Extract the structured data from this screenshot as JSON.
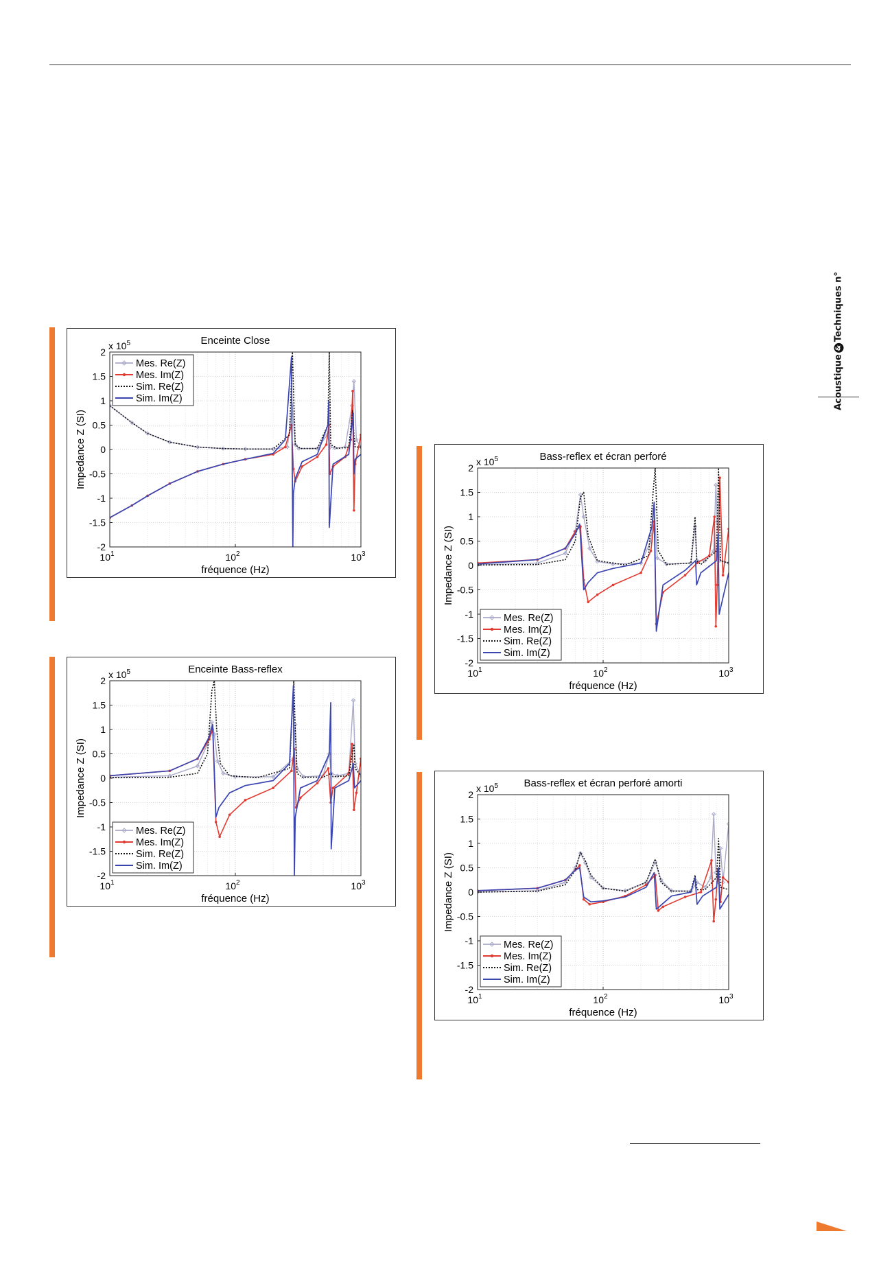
{
  "page": {
    "side_brand": {
      "left": "Acoustique",
      "mid": "&",
      "right": "Techniques n°"
    }
  },
  "style": {
    "accent": "#ee7a2f",
    "mes_re": "#a9a9c9",
    "mes_im": "#e23a30",
    "sim_re": "#111111",
    "sim_im": "#3a45b0"
  },
  "chart_data": [
    {
      "type": "line",
      "title": "Enceinte Close",
      "xlabel": "fréquence (Hz)",
      "ylabel": "Impedance Z (SI)",
      "y_multiplier": "x 10",
      "y_multiplier_exp": "5",
      "xscale": "log",
      "xlim": [
        10,
        1000
      ],
      "ylim": [
        -2,
        2
      ],
      "x_ticks": [
        "10",
        "10",
        "10"
      ],
      "x_tick_exps": [
        "1",
        "2",
        "3"
      ],
      "y_ticks": [
        "2",
        "1.5",
        "1",
        "0.5",
        "0",
        "-0.5",
        "-1",
        "-1.5",
        "-2"
      ],
      "grid": true,
      "legend_position": "upper-left",
      "series": [
        {
          "name": "Mes. Re(Z)",
          "x": [
            10,
            15,
            20,
            30,
            50,
            80,
            120,
            200,
            260,
            285,
            300,
            320,
            450,
            540,
            570,
            620,
            750,
            850,
            880,
            920,
            1000
          ],
          "y": [
            0.9,
            0.55,
            0.33,
            0.15,
            0.05,
            0.02,
            0.01,
            0.01,
            0.05,
            0.9,
            0.1,
            0.02,
            0.02,
            0.3,
            0.05,
            0.03,
            0.05,
            0.9,
            1.4,
            0.2,
            0.05
          ]
        },
        {
          "name": "Mes. Im(Z)",
          "x": [
            10,
            15,
            20,
            30,
            50,
            80,
            120,
            200,
            250,
            280,
            290,
            300,
            340,
            450,
            530,
            555,
            565,
            600,
            750,
            830,
            860,
            880,
            900,
            1000
          ],
          "y": [
            -1.4,
            -1.15,
            -0.95,
            -0.7,
            -0.45,
            -0.3,
            -0.2,
            -0.1,
            0.05,
            0.5,
            -0.4,
            -0.65,
            -0.35,
            -0.15,
            0.1,
            0.5,
            -0.5,
            -0.35,
            -0.15,
            0.2,
            1.2,
            -1.25,
            -0.3,
            0.3
          ]
        },
        {
          "name": "Sim. Re(Z)",
          "x": [
            10,
            15,
            20,
            30,
            50,
            80,
            120,
            200,
            270,
            285,
            292,
            300,
            330,
            450,
            545,
            560,
            575,
            650,
            800,
            860,
            880,
            900,
            1000
          ],
          "y": [
            0.9,
            0.55,
            0.33,
            0.15,
            0.05,
            0.02,
            0.01,
            0.01,
            0.3,
            2.0,
            1.0,
            0.1,
            0.02,
            0.02,
            0.5,
            2.0,
            0.1,
            0.02,
            0.05,
            0.8,
            0.3,
            0.05,
            0.05
          ]
        },
        {
          "name": "Sim. Im(Z)",
          "x": [
            10,
            15,
            20,
            30,
            50,
            80,
            120,
            200,
            250,
            280,
            287,
            290,
            300,
            340,
            450,
            545,
            555,
            560,
            600,
            800,
            870,
            880,
            900,
            1000
          ],
          "y": [
            -1.4,
            -1.15,
            -0.95,
            -0.7,
            -0.45,
            -0.3,
            -0.2,
            -0.08,
            0.2,
            1.9,
            -2.0,
            -0.9,
            -0.6,
            -0.25,
            -0.1,
            0.5,
            1.0,
            -1.6,
            -0.3,
            -0.1,
            0.75,
            -0.5,
            -0.2,
            -0.1
          ]
        }
      ]
    },
    {
      "type": "line",
      "title": "Enceinte Bass-reflex",
      "xlabel": "fréquence (Hz)",
      "ylabel": "Impedance Z (SI)",
      "y_multiplier": "x 10",
      "y_multiplier_exp": "5",
      "xscale": "log",
      "xlim": [
        10,
        1000
      ],
      "ylim": [
        -2,
        2
      ],
      "x_ticks": [
        "10",
        "10",
        "10"
      ],
      "x_tick_exps": [
        "1",
        "2",
        "3"
      ],
      "y_ticks": [
        "2",
        "1.5",
        "1",
        "0.5",
        "0",
        "-0.5",
        "-1",
        "-1.5",
        "-2"
      ],
      "grid": true,
      "legend_position": "lower-left",
      "series": [
        {
          "name": "Mes. Re(Z)",
          "x": [
            10,
            30,
            50,
            60,
            65,
            68,
            72,
            80,
            100,
            200,
            290,
            300,
            310,
            350,
            500,
            560,
            580,
            650,
            800,
            870,
            900,
            1000
          ],
          "y": [
            0.02,
            0.05,
            0.25,
            0.7,
            1.15,
            0.9,
            0.35,
            0.1,
            0.03,
            0.03,
            0.4,
            1.1,
            0.2,
            0.03,
            0.05,
            0.5,
            0.1,
            0.05,
            0.1,
            1.6,
            0.3,
            0.05
          ]
        },
        {
          "name": "Mes. Im(Z)",
          "x": [
            10,
            30,
            50,
            62,
            66,
            70,
            75,
            90,
            120,
            200,
            280,
            295,
            305,
            330,
            450,
            550,
            575,
            600,
            800,
            850,
            880,
            920,
            1000
          ],
          "y": [
            0.05,
            0.15,
            0.4,
            0.8,
            1.0,
            -0.9,
            -1.2,
            -0.75,
            -0.45,
            -0.2,
            0.15,
            0.6,
            -0.6,
            -0.4,
            -0.1,
            0.2,
            -0.5,
            -0.2,
            0.1,
            0.7,
            -0.65,
            -0.3,
            0.4
          ]
        },
        {
          "name": "Sim. Re(Z)",
          "x": [
            10,
            30,
            50,
            60,
            65,
            68,
            71,
            76,
            90,
            150,
            270,
            292,
            300,
            310,
            340,
            500,
            580,
            600,
            800,
            880,
            900,
            1000
          ],
          "y": [
            0.01,
            0.02,
            0.1,
            0.5,
            1.8,
            2.0,
            1.0,
            0.3,
            0.05,
            0.01,
            0.2,
            2.0,
            1.0,
            0.1,
            0.02,
            0.02,
            0.1,
            0.03,
            0.05,
            0.7,
            0.2,
            0.05
          ]
        },
        {
          "name": "Sim. Im(Z)",
          "x": [
            10,
            30,
            50,
            62,
            66,
            70,
            74,
            90,
            120,
            200,
            270,
            290,
            295,
            300,
            330,
            450,
            560,
            575,
            580,
            620,
            800,
            870,
            890,
            1000
          ],
          "y": [
            0.05,
            0.15,
            0.4,
            0.85,
            1.1,
            -0.8,
            -0.6,
            -0.3,
            -0.15,
            -0.05,
            0.3,
            1.9,
            -2.0,
            -0.8,
            -0.2,
            -0.05,
            0.5,
            1.55,
            -1.45,
            -0.2,
            -0.05,
            0.3,
            -0.2,
            -0.05
          ]
        }
      ]
    },
    {
      "type": "line",
      "title": "Bass-reflex et écran perforé",
      "xlabel": "fréquence (Hz)",
      "ylabel": "Impedance Z (SI)",
      "y_multiplier": "x 10",
      "y_multiplier_exp": "5",
      "xscale": "log",
      "xlim": [
        10,
        1000
      ],
      "ylim": [
        -2,
        2
      ],
      "x_ticks": [
        "10",
        "10",
        "10"
      ],
      "x_tick_exps": [
        "1",
        "2",
        "3"
      ],
      "y_ticks": [
        "2",
        "1.5",
        "1",
        "0.5",
        "0",
        "-0.5",
        "-1",
        "-1.5",
        "-2"
      ],
      "grid": true,
      "legend_position": "lower-left",
      "series": [
        {
          "name": "Mes. Re(Z)",
          "x": [
            10,
            30,
            50,
            60,
            66,
            70,
            78,
            90,
            120,
            200,
            240,
            255,
            270,
            320,
            500,
            540,
            560,
            650,
            760,
            790,
            810,
            850,
            1000
          ],
          "y": [
            0.01,
            0.05,
            0.25,
            0.7,
            1.45,
            1.0,
            0.35,
            0.08,
            0.03,
            0.05,
            0.5,
            1.15,
            0.15,
            0.03,
            0.05,
            0.8,
            0.1,
            0.1,
            0.3,
            1.65,
            0.9,
            0.1,
            0.05
          ]
        },
        {
          "name": "Mes. Im(Z)",
          "x": [
            10,
            30,
            50,
            60,
            66,
            70,
            76,
            90,
            120,
            200,
            240,
            255,
            265,
            300,
            450,
            560,
            700,
            770,
            790,
            810,
            850,
            900,
            1000
          ],
          "y": [
            0.05,
            0.12,
            0.35,
            0.7,
            0.8,
            -0.3,
            -0.75,
            -0.6,
            -0.4,
            -0.15,
            0.3,
            0.9,
            -1.2,
            -0.55,
            -0.2,
            0.05,
            0.2,
            1.0,
            -1.25,
            -0.4,
            1.8,
            -0.2,
            0.75
          ]
        },
        {
          "name": "Sim. Re(Z)",
          "x": [
            10,
            30,
            50,
            60,
            66,
            70,
            76,
            90,
            150,
            230,
            250,
            260,
            275,
            320,
            500,
            540,
            555,
            600,
            800,
            830,
            860,
            1000
          ],
          "y": [
            0.01,
            0.02,
            0.12,
            0.5,
            1.4,
            1.5,
            0.6,
            0.1,
            0.01,
            0.2,
            1.5,
            2.0,
            0.3,
            0.02,
            0.05,
            1.0,
            0.1,
            0.02,
            0.3,
            2.0,
            0.1,
            0.05
          ]
        },
        {
          "name": "Sim. Im(Z)",
          "x": [
            10,
            30,
            50,
            60,
            65,
            70,
            76,
            90,
            120,
            200,
            245,
            255,
            265,
            300,
            450,
            545,
            555,
            600,
            800,
            825,
            840,
            1000
          ],
          "y": [
            0.03,
            0.12,
            0.35,
            0.65,
            0.85,
            -0.5,
            -0.35,
            -0.15,
            -0.06,
            0.05,
            0.8,
            1.3,
            -1.35,
            -0.4,
            -0.1,
            0.1,
            -0.4,
            -0.15,
            0.1,
            0.65,
            -1.0,
            -0.15
          ]
        }
      ]
    },
    {
      "type": "line",
      "title": "Bass-reflex et écran perforé amorti",
      "xlabel": "fréquence (Hz)",
      "ylabel": "Impedance Z (SI)",
      "y_multiplier": "x 10",
      "y_multiplier_exp": "5",
      "xscale": "log",
      "xlim": [
        10,
        1000
      ],
      "ylim": [
        -2,
        2
      ],
      "x_ticks": [
        "10",
        "10",
        "10"
      ],
      "x_tick_exps": [
        "1",
        "2",
        "3"
      ],
      "y_ticks": [
        "2",
        "1.5",
        "1",
        "0.5",
        "0",
        "-0.5",
        "-1",
        "-1.5",
        "-2"
      ],
      "grid": true,
      "legend_position": "lower-left",
      "series": [
        {
          "name": "Mes. Re(Z)",
          "x": [
            10,
            30,
            50,
            60,
            66,
            72,
            80,
            100,
            150,
            220,
            260,
            290,
            350,
            500,
            560,
            650,
            720,
            760,
            790,
            830,
            860,
            900,
            1000
          ],
          "y": [
            0.0,
            0.03,
            0.2,
            0.5,
            0.8,
            0.6,
            0.3,
            0.08,
            0.03,
            0.2,
            0.62,
            0.25,
            0.03,
            0.02,
            0.2,
            0.1,
            0.3,
            1.6,
            0.4,
            0.2,
            0.9,
            0.2,
            1.4
          ]
        },
        {
          "name": "Mes. Im(Z)",
          "x": [
            10,
            30,
            50,
            60,
            65,
            70,
            78,
            100,
            150,
            220,
            260,
            275,
            300,
            450,
            600,
            730,
            760,
            790,
            820,
            860,
            900,
            1000
          ],
          "y": [
            0.03,
            0.08,
            0.25,
            0.45,
            0.55,
            -0.15,
            -0.25,
            -0.2,
            -0.08,
            0.15,
            0.35,
            -0.38,
            -0.3,
            -0.1,
            0.0,
            0.65,
            -0.6,
            -0.15,
            0.45,
            -0.2,
            0.3,
            0.2
          ]
        },
        {
          "name": "Sim. Re(Z)",
          "x": [
            10,
            30,
            50,
            60,
            66,
            72,
            80,
            100,
            150,
            220,
            260,
            290,
            350,
            500,
            540,
            560,
            650,
            800,
            830,
            860,
            1000
          ],
          "y": [
            0.0,
            0.02,
            0.15,
            0.45,
            0.82,
            0.65,
            0.35,
            0.08,
            0.02,
            0.2,
            0.68,
            0.2,
            0.02,
            0.02,
            0.35,
            0.05,
            0.05,
            0.3,
            1.1,
            0.1,
            0.05
          ]
        },
        {
          "name": "Sim. Im(Z)",
          "x": [
            10,
            30,
            50,
            60,
            65,
            70,
            80,
            100,
            150,
            220,
            255,
            265,
            280,
            350,
            500,
            540,
            560,
            620,
            800,
            830,
            850,
            1000
          ],
          "y": [
            0.03,
            0.08,
            0.25,
            0.45,
            0.5,
            -0.1,
            -0.2,
            -0.18,
            -0.1,
            0.1,
            0.4,
            -0.35,
            -0.3,
            -0.08,
            0.0,
            0.3,
            -0.25,
            -0.08,
            0.1,
            0.5,
            -0.35,
            -0.05
          ]
        }
      ]
    }
  ]
}
